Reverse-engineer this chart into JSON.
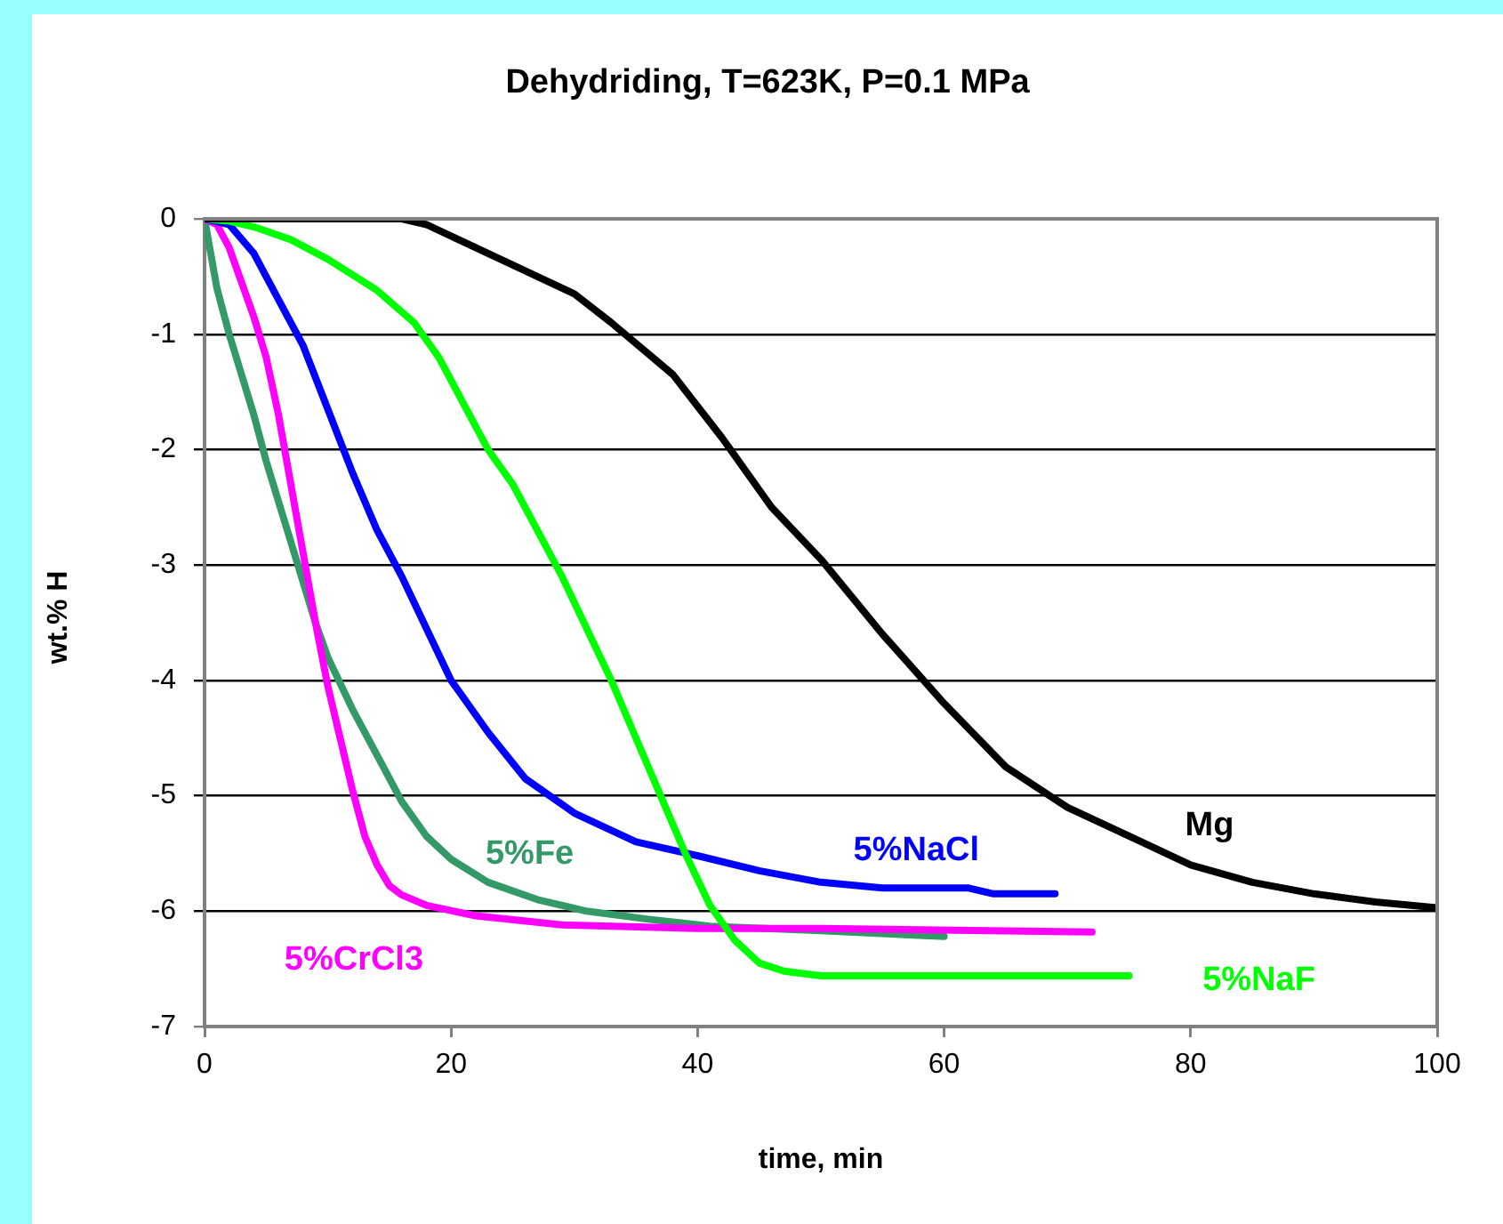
{
  "chart_data": {
    "type": "line",
    "title": "Dehydriding, T=623K, P=0.1 MPa",
    "xlabel": "time, min",
    "ylabel": "wt.% H",
    "xlim": [
      0,
      100
    ],
    "xticks": [
      0,
      20,
      40,
      60,
      80,
      100
    ],
    "ylim": [
      -7,
      0
    ],
    "yticks": [
      -7,
      -6,
      -5,
      -4,
      -3,
      -2,
      -1,
      0
    ],
    "grid": "y",
    "legend": false,
    "marker": "none",
    "line_style": "solid",
    "series": [
      {
        "name": "Mg",
        "color": "#000000",
        "x": [
          0,
          16,
          18,
          20,
          25,
          30,
          33,
          38,
          42,
          46,
          50,
          55,
          60,
          65,
          70,
          75,
          80,
          85,
          90,
          95,
          100
        ],
        "values": [
          0,
          0,
          -0.05,
          -0.15,
          -0.4,
          -0.65,
          -0.9,
          -1.35,
          -1.9,
          -2.5,
          -2.95,
          -3.6,
          -4.2,
          -4.75,
          -5.1,
          -5.35,
          -5.6,
          -5.75,
          -5.85,
          -5.92,
          -5.97
        ]
      },
      {
        "name": "5%NaF",
        "color": "#00ff00",
        "x": [
          0,
          2,
          4,
          7,
          10,
          14,
          17,
          19,
          21,
          23,
          25,
          27,
          29,
          31,
          33,
          35,
          37,
          39,
          41,
          43,
          45,
          47,
          50,
          75
        ],
        "values": [
          0,
          -0.02,
          -0.07,
          -0.18,
          -0.35,
          -0.62,
          -0.9,
          -1.2,
          -1.6,
          -2.0,
          -2.3,
          -2.7,
          -3.1,
          -3.55,
          -4.0,
          -4.5,
          -5.0,
          -5.5,
          -5.95,
          -6.25,
          -6.45,
          -6.52,
          -6.56,
          -6.56
        ]
      },
      {
        "name": "5%NaCl",
        "color": "#0000ff",
        "x": [
          0,
          2,
          4,
          6,
          8,
          10,
          12,
          14,
          16,
          18,
          20,
          23,
          26,
          30,
          35,
          40,
          45,
          50,
          55,
          62,
          64,
          69
        ],
        "values": [
          0,
          -0.05,
          -0.3,
          -0.7,
          -1.1,
          -1.65,
          -2.2,
          -2.7,
          -3.1,
          -3.55,
          -4.0,
          -4.45,
          -4.85,
          -5.15,
          -5.4,
          -5.52,
          -5.65,
          -5.75,
          -5.8,
          -5.8,
          -5.85,
          -5.85
        ]
      },
      {
        "name": "5%CrCl3",
        "color": "#ff00ff",
        "x": [
          0,
          1,
          2,
          3,
          4,
          5,
          6,
          7,
          8,
          9,
          10,
          11,
          12,
          13,
          14,
          15,
          16,
          18,
          22,
          29,
          40,
          50,
          72
        ],
        "values": [
          0,
          -0.05,
          -0.25,
          -0.55,
          -0.85,
          -1.2,
          -1.7,
          -2.3,
          -2.9,
          -3.5,
          -4.05,
          -4.5,
          -4.95,
          -5.35,
          -5.6,
          -5.78,
          -5.86,
          -5.95,
          -6.04,
          -6.12,
          -6.15,
          -6.15,
          -6.18
        ]
      },
      {
        "name": "5%Fe",
        "color": "#339966",
        "x": [
          0,
          0.5,
          1,
          2,
          3,
          4,
          5,
          6,
          7,
          8,
          9,
          10,
          12,
          14,
          16,
          18,
          20,
          23,
          27,
          31,
          36,
          41,
          50,
          60
        ],
        "values": [
          0,
          -0.3,
          -0.6,
          -1.0,
          -1.35,
          -1.7,
          -2.1,
          -2.45,
          -2.8,
          -3.15,
          -3.5,
          -3.8,
          -4.25,
          -4.65,
          -5.05,
          -5.35,
          -5.55,
          -5.75,
          -5.9,
          -6.0,
          -6.07,
          -6.13,
          -6.17,
          -6.22
        ]
      }
    ]
  }
}
